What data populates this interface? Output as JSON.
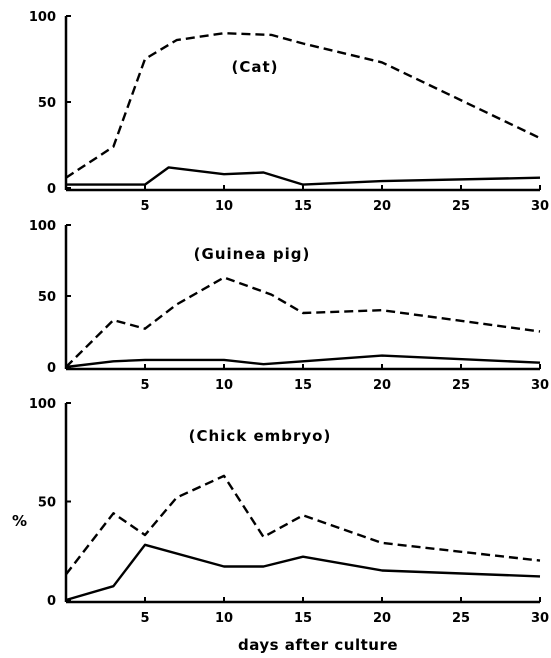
{
  "chart_data": [
    {
      "type": "line",
      "title": "(Cat)",
      "xlabel": "",
      "ylabel": "",
      "xlim": [
        0,
        30
      ],
      "ylim": [
        0,
        100
      ],
      "x_ticks": [
        5,
        10,
        15,
        20,
        25,
        30
      ],
      "y_ticks": [
        0,
        50,
        100
      ],
      "y_tick_labels": [
        "0",
        "50",
        "100"
      ],
      "grid": false,
      "series": [
        {
          "style": "dashed",
          "points": [
            [
              0,
              6
            ],
            [
              3,
              24
            ],
            [
              5,
              75
            ],
            [
              7,
              86
            ],
            [
              10,
              90
            ],
            [
              13,
              89
            ],
            [
              15,
              84
            ],
            [
              20,
              73
            ],
            [
              30,
              29
            ]
          ]
        },
        {
          "style": "solid",
          "points": [
            [
              0,
              2
            ],
            [
              5,
              2
            ],
            [
              6.5,
              12
            ],
            [
              10,
              8
            ],
            [
              12.5,
              9
            ],
            [
              15,
              2
            ],
            [
              20,
              4
            ],
            [
              30,
              6
            ]
          ]
        }
      ]
    },
    {
      "type": "line",
      "title": "(Guinea pig)",
      "xlabel": "",
      "ylabel": "",
      "xlim": [
        0,
        30
      ],
      "ylim": [
        0,
        100
      ],
      "x_ticks": [
        5,
        10,
        15,
        20,
        25,
        30
      ],
      "y_ticks": [
        0,
        50,
        100
      ],
      "y_tick_labels": [
        "0",
        "50",
        "100"
      ],
      "grid": false,
      "series": [
        {
          "style": "dashed",
          "points": [
            [
              0,
              0
            ],
            [
              3,
              33
            ],
            [
              5,
              27
            ],
            [
              7,
              44
            ],
            [
              10,
              63
            ],
            [
              13,
              51
            ],
            [
              15,
              38
            ],
            [
              20,
              40
            ],
            [
              30,
              25
            ]
          ]
        },
        {
          "style": "solid",
          "points": [
            [
              0,
              0
            ],
            [
              3,
              4
            ],
            [
              5,
              5
            ],
            [
              10,
              5
            ],
            [
              12.5,
              2
            ],
            [
              15,
              4
            ],
            [
              20,
              8
            ],
            [
              30,
              3
            ]
          ]
        }
      ]
    },
    {
      "type": "line",
      "title": "(Chick embryo)",
      "xlabel": "days after culture",
      "ylabel": "%",
      "xlim": [
        0,
        30
      ],
      "ylim": [
        0,
        100
      ],
      "x_ticks": [
        5,
        10,
        15,
        20,
        25,
        30
      ],
      "y_ticks": [
        0,
        50,
        100
      ],
      "y_tick_labels": [
        "0",
        "50",
        "100"
      ],
      "grid": false,
      "series": [
        {
          "style": "dashed",
          "points": [
            [
              0,
              13
            ],
            [
              3,
              44
            ],
            [
              5,
              33
            ],
            [
              7,
              52
            ],
            [
              10,
              63
            ],
            [
              12.5,
              32
            ],
            [
              15,
              43
            ],
            [
              20,
              29
            ],
            [
              30,
              20
            ]
          ]
        },
        {
          "style": "solid",
          "points": [
            [
              0,
              0
            ],
            [
              3,
              7
            ],
            [
              5,
              28
            ],
            [
              10,
              17
            ],
            [
              12.5,
              17
            ],
            [
              15,
              22
            ],
            [
              20,
              15
            ],
            [
              30,
              12
            ]
          ]
        }
      ]
    }
  ]
}
